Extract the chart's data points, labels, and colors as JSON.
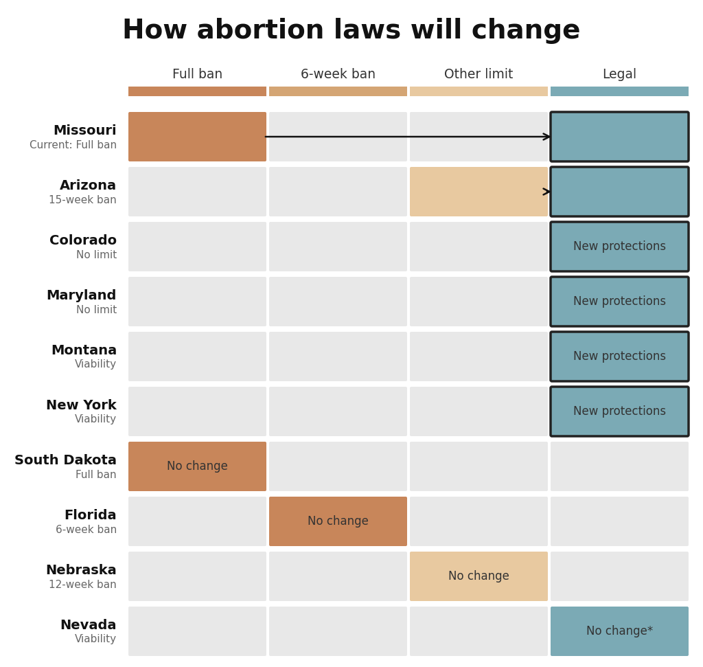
{
  "title": "How abortion laws will change",
  "col_labels": [
    "Full ban",
    "6-week ban",
    "Other limit",
    "Legal"
  ],
  "col_colors_bar": [
    "#C8865A",
    "#D4A574",
    "#E8C9A0",
    "#7BAAB5"
  ],
  "bg_color": "#FFFFFF",
  "cell_bg": "#E8E8E8",
  "states": [
    {
      "name": "Missouri",
      "subtitle": "Current: Full ban",
      "highlighted_col": 0,
      "highlight_color": "#C8865A",
      "arrow_to_col": 3,
      "label": "",
      "bordered_col": 3,
      "border_color": "#222222",
      "bordered_fill": "#7BAAB5"
    },
    {
      "name": "Arizona",
      "subtitle": "15-week ban",
      "highlighted_col": 2,
      "highlight_color": "#E8C9A0",
      "arrow_to_col": 3,
      "label": "",
      "bordered_col": 3,
      "border_color": "#222222",
      "bordered_fill": "#7BAAB5"
    },
    {
      "name": "Colorado",
      "subtitle": "No limit",
      "highlighted_col": -1,
      "highlight_color": null,
      "arrow_to_col": -1,
      "label": "New protections",
      "bordered_col": 3,
      "border_color": "#222222",
      "bordered_fill": "#7BAAB5"
    },
    {
      "name": "Maryland",
      "subtitle": "No limit",
      "highlighted_col": -1,
      "highlight_color": null,
      "arrow_to_col": -1,
      "label": "New protections",
      "bordered_col": 3,
      "border_color": "#222222",
      "bordered_fill": "#7BAAB5"
    },
    {
      "name": "Montana",
      "subtitle": "Viability",
      "highlighted_col": -1,
      "highlight_color": null,
      "arrow_to_col": -1,
      "label": "New protections",
      "bordered_col": 3,
      "border_color": "#222222",
      "bordered_fill": "#7BAAB5"
    },
    {
      "name": "New York",
      "subtitle": "Viability",
      "highlighted_col": -1,
      "highlight_color": null,
      "arrow_to_col": -1,
      "label": "New protections",
      "bordered_col": 3,
      "border_color": "#222222",
      "bordered_fill": "#7BAAB5"
    },
    {
      "name": "South Dakota",
      "subtitle": "Full ban",
      "highlighted_col": 0,
      "highlight_color": "#C8865A",
      "arrow_to_col": -1,
      "label": "No change",
      "bordered_col": -1,
      "border_color": null,
      "bordered_fill": null
    },
    {
      "name": "Florida",
      "subtitle": "6-week ban",
      "highlighted_col": 1,
      "highlight_color": "#C8865A",
      "arrow_to_col": -1,
      "label": "No change",
      "bordered_col": -1,
      "border_color": null,
      "bordered_fill": null
    },
    {
      "name": "Nebraska",
      "subtitle": "12-week ban",
      "highlighted_col": 2,
      "highlight_color": "#E8C9A0",
      "arrow_to_col": -1,
      "label": "No change",
      "bordered_col": -1,
      "border_color": null,
      "bordered_fill": null
    },
    {
      "name": "Nevada",
      "subtitle": "Viability",
      "highlighted_col": 3,
      "highlight_color": "#7BAAB5",
      "arrow_to_col": -1,
      "label": "No change*",
      "bordered_col": -1,
      "border_color": null,
      "bordered_fill": null
    }
  ]
}
